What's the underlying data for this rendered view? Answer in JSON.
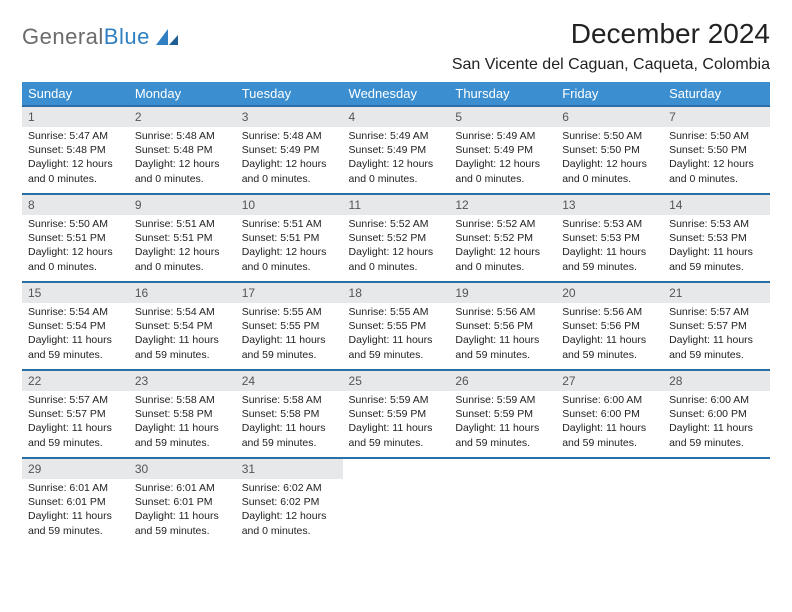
{
  "logo": {
    "text1": "General",
    "text2": "Blue"
  },
  "title": "December 2024",
  "location": "San Vicente del Caguan, Caqueta, Colombia",
  "colors": {
    "header_bg": "#3b8fd1",
    "header_border": "#2b6fa8",
    "daynum_bg": "#e7e8ea",
    "logo_gray": "#6b6b6b",
    "logo_blue": "#2f7fc2"
  },
  "weekdays": [
    "Sunday",
    "Monday",
    "Tuesday",
    "Wednesday",
    "Thursday",
    "Friday",
    "Saturday"
  ],
  "weeks": [
    [
      {
        "n": 1,
        "sunrise": "5:47 AM",
        "sunset": "5:48 PM",
        "daylight": "12 hours and 0 minutes."
      },
      {
        "n": 2,
        "sunrise": "5:48 AM",
        "sunset": "5:48 PM",
        "daylight": "12 hours and 0 minutes."
      },
      {
        "n": 3,
        "sunrise": "5:48 AM",
        "sunset": "5:49 PM",
        "daylight": "12 hours and 0 minutes."
      },
      {
        "n": 4,
        "sunrise": "5:49 AM",
        "sunset": "5:49 PM",
        "daylight": "12 hours and 0 minutes."
      },
      {
        "n": 5,
        "sunrise": "5:49 AM",
        "sunset": "5:49 PM",
        "daylight": "12 hours and 0 minutes."
      },
      {
        "n": 6,
        "sunrise": "5:50 AM",
        "sunset": "5:50 PM",
        "daylight": "12 hours and 0 minutes."
      },
      {
        "n": 7,
        "sunrise": "5:50 AM",
        "sunset": "5:50 PM",
        "daylight": "12 hours and 0 minutes."
      }
    ],
    [
      {
        "n": 8,
        "sunrise": "5:50 AM",
        "sunset": "5:51 PM",
        "daylight": "12 hours and 0 minutes."
      },
      {
        "n": 9,
        "sunrise": "5:51 AM",
        "sunset": "5:51 PM",
        "daylight": "12 hours and 0 minutes."
      },
      {
        "n": 10,
        "sunrise": "5:51 AM",
        "sunset": "5:51 PM",
        "daylight": "12 hours and 0 minutes."
      },
      {
        "n": 11,
        "sunrise": "5:52 AM",
        "sunset": "5:52 PM",
        "daylight": "12 hours and 0 minutes."
      },
      {
        "n": 12,
        "sunrise": "5:52 AM",
        "sunset": "5:52 PM",
        "daylight": "12 hours and 0 minutes."
      },
      {
        "n": 13,
        "sunrise": "5:53 AM",
        "sunset": "5:53 PM",
        "daylight": "11 hours and 59 minutes."
      },
      {
        "n": 14,
        "sunrise": "5:53 AM",
        "sunset": "5:53 PM",
        "daylight": "11 hours and 59 minutes."
      }
    ],
    [
      {
        "n": 15,
        "sunrise": "5:54 AM",
        "sunset": "5:54 PM",
        "daylight": "11 hours and 59 minutes."
      },
      {
        "n": 16,
        "sunrise": "5:54 AM",
        "sunset": "5:54 PM",
        "daylight": "11 hours and 59 minutes."
      },
      {
        "n": 17,
        "sunrise": "5:55 AM",
        "sunset": "5:55 PM",
        "daylight": "11 hours and 59 minutes."
      },
      {
        "n": 18,
        "sunrise": "5:55 AM",
        "sunset": "5:55 PM",
        "daylight": "11 hours and 59 minutes."
      },
      {
        "n": 19,
        "sunrise": "5:56 AM",
        "sunset": "5:56 PM",
        "daylight": "11 hours and 59 minutes."
      },
      {
        "n": 20,
        "sunrise": "5:56 AM",
        "sunset": "5:56 PM",
        "daylight": "11 hours and 59 minutes."
      },
      {
        "n": 21,
        "sunrise": "5:57 AM",
        "sunset": "5:57 PM",
        "daylight": "11 hours and 59 minutes."
      }
    ],
    [
      {
        "n": 22,
        "sunrise": "5:57 AM",
        "sunset": "5:57 PM",
        "daylight": "11 hours and 59 minutes."
      },
      {
        "n": 23,
        "sunrise": "5:58 AM",
        "sunset": "5:58 PM",
        "daylight": "11 hours and 59 minutes."
      },
      {
        "n": 24,
        "sunrise": "5:58 AM",
        "sunset": "5:58 PM",
        "daylight": "11 hours and 59 minutes."
      },
      {
        "n": 25,
        "sunrise": "5:59 AM",
        "sunset": "5:59 PM",
        "daylight": "11 hours and 59 minutes."
      },
      {
        "n": 26,
        "sunrise": "5:59 AM",
        "sunset": "5:59 PM",
        "daylight": "11 hours and 59 minutes."
      },
      {
        "n": 27,
        "sunrise": "6:00 AM",
        "sunset": "6:00 PM",
        "daylight": "11 hours and 59 minutes."
      },
      {
        "n": 28,
        "sunrise": "6:00 AM",
        "sunset": "6:00 PM",
        "daylight": "11 hours and 59 minutes."
      }
    ],
    [
      {
        "n": 29,
        "sunrise": "6:01 AM",
        "sunset": "6:01 PM",
        "daylight": "11 hours and 59 minutes."
      },
      {
        "n": 30,
        "sunrise": "6:01 AM",
        "sunset": "6:01 PM",
        "daylight": "11 hours and 59 minutes."
      },
      {
        "n": 31,
        "sunrise": "6:02 AM",
        "sunset": "6:02 PM",
        "daylight": "12 hours and 0 minutes."
      },
      null,
      null,
      null,
      null
    ]
  ],
  "labels": {
    "sunrise": "Sunrise:",
    "sunset": "Sunset:",
    "daylight": "Daylight:"
  }
}
